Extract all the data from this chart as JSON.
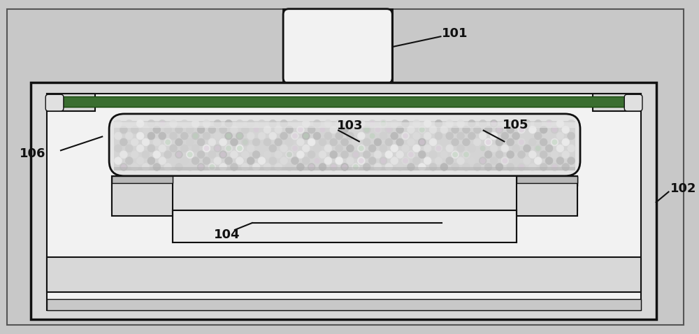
{
  "bg_color": "#c8c8c8",
  "outer_rect_fill": "#e0e0e0",
  "housing_fill": "#d8d8d8",
  "inner_fill": "#f2f2f2",
  "white_fill": "#ffffff",
  "green_color": "#3a6e30",
  "line_color": "#111111",
  "label_101": "101",
  "label_102": "102",
  "label_103": "103",
  "label_104": "104",
  "label_105": "105",
  "label_106": "106",
  "font_size": 12,
  "fig_width": 10.0,
  "fig_height": 4.78
}
